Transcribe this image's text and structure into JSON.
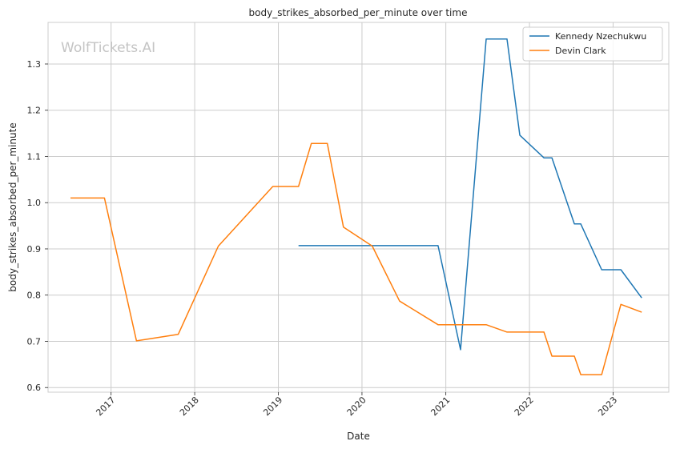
{
  "watermark": "WolfTickets.AI",
  "chart_data": {
    "type": "line",
    "title": "body_strikes_absorbed_per_minute over time",
    "xlabel": "Date",
    "ylabel": "body_strikes_absorbed_per_minute",
    "x_ticks": [
      "2017",
      "2018",
      "2019",
      "2020",
      "2021",
      "2022",
      "2023"
    ],
    "y_ticks": [
      "0.6",
      "0.7",
      "0.8",
      "0.9",
      "1.0",
      "1.1",
      "1.2",
      "1.3"
    ],
    "xlim": [
      "2016-04-01",
      "2023-09-01"
    ],
    "ylim": [
      0.59,
      1.39
    ],
    "grid": true,
    "legend_position": "top-right",
    "series": [
      {
        "name": "Kennedy Nzechukwu",
        "color": "#1f77b4",
        "points": [
          [
            "2019-03-30",
            0.907
          ],
          [
            "2020-11-28",
            0.907
          ],
          [
            "2021-03-06",
            0.682
          ],
          [
            "2021-06-26",
            1.354
          ],
          [
            "2021-09-25",
            1.354
          ],
          [
            "2021-11-20",
            1.146
          ],
          [
            "2022-03-05",
            1.097
          ],
          [
            "2022-04-09",
            1.097
          ],
          [
            "2022-07-16",
            0.954
          ],
          [
            "2022-08-13",
            0.954
          ],
          [
            "2022-11-12",
            0.855
          ],
          [
            "2023-02-04",
            0.855
          ],
          [
            "2023-05-06",
            0.794
          ]
        ]
      },
      {
        "name": "Devin Clark",
        "color": "#ff7f0e",
        "points": [
          [
            "2016-07-08",
            1.01
          ],
          [
            "2016-12-03",
            1.01
          ],
          [
            "2017-04-22",
            0.701
          ],
          [
            "2017-10-21",
            0.715
          ],
          [
            "2018-04-14",
            0.906
          ],
          [
            "2018-12-08",
            1.035
          ],
          [
            "2019-03-30",
            1.035
          ],
          [
            "2019-05-25",
            1.128
          ],
          [
            "2019-08-03",
            1.128
          ],
          [
            "2019-10-12",
            0.947
          ],
          [
            "2020-02-15",
            0.906
          ],
          [
            "2020-06-13",
            0.787
          ],
          [
            "2020-11-28",
            0.736
          ],
          [
            "2021-06-26",
            0.736
          ],
          [
            "2021-09-25",
            0.72
          ],
          [
            "2022-03-05",
            0.72
          ],
          [
            "2022-04-09",
            0.668
          ],
          [
            "2022-07-16",
            0.668
          ],
          [
            "2022-08-13",
            0.628
          ],
          [
            "2022-11-12",
            0.628
          ],
          [
            "2023-02-04",
            0.78
          ],
          [
            "2023-05-06",
            0.763
          ]
        ]
      }
    ]
  }
}
